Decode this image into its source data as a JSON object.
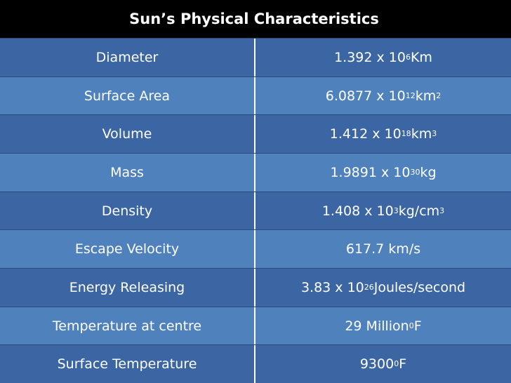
{
  "table": {
    "title": "Sun’s Physical Characteristics",
    "rows": [
      [
        "Diameter",
        [
          {
            "t": "1.392 x 10"
          },
          {
            "sup": "6"
          },
          {
            "t": " Km"
          }
        ]
      ],
      [
        "Surface Area",
        [
          {
            "t": "6.0877 x 10"
          },
          {
            "sup": "12"
          },
          {
            "t": " km"
          },
          {
            "sup": "2"
          }
        ]
      ],
      [
        "Volume",
        [
          {
            "t": "1.412 x 10"
          },
          {
            "sup": "18"
          },
          {
            "t": " km"
          },
          {
            "sup": "3"
          }
        ]
      ],
      [
        "Mass",
        [
          {
            "t": "1.9891 x 10"
          },
          {
            "sup": "30"
          },
          {
            "t": " kg"
          }
        ]
      ],
      [
        "Density",
        [
          {
            "t": "1.408 x 10"
          },
          {
            "sup": "3"
          },
          {
            "t": " kg/cm"
          },
          {
            "sup": "3"
          }
        ]
      ],
      [
        "Escape Velocity",
        [
          {
            "t": "617.7 km/s"
          }
        ]
      ],
      [
        "Energy Releasing",
        [
          {
            "t": "3.83 x 10"
          },
          {
            "sup": "26"
          },
          {
            "t": " Joules/second"
          }
        ]
      ],
      [
        "Temperature at centre",
        [
          {
            "t": "29 Million"
          },
          {
            "sup": "0"
          },
          {
            "t": "F"
          }
        ]
      ],
      [
        "Surface Temperature",
        [
          {
            "t": "9300"
          },
          {
            "sup": "0"
          },
          {
            "t": "F"
          }
        ]
      ]
    ]
  }
}
